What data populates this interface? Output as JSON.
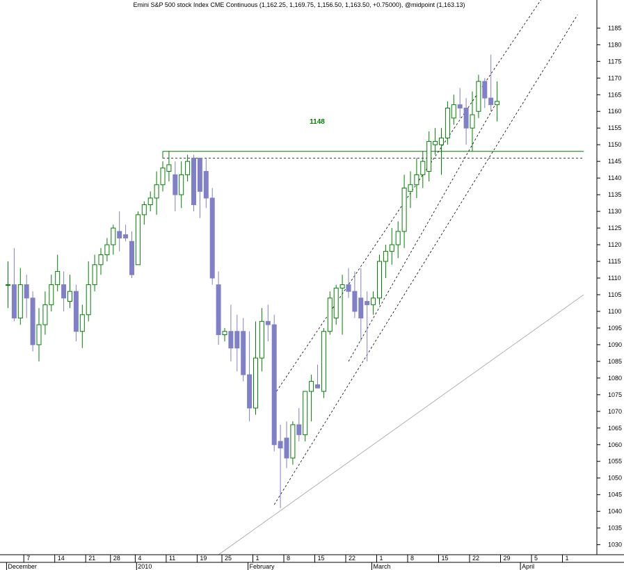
{
  "chart_data": {
    "type": "candlestick",
    "title": "Emini S&P 500 stock Index CME Continuous (1,162.25, 1,169.75, 1,156.50, 1,163.50, +0.75000), @midpoint (1,163.13)",
    "ylim": [
      1027,
      1193
    ],
    "ylabel": "",
    "xlabel": "",
    "grid": false,
    "y_ticks": [
      1030,
      1035,
      1040,
      1045,
      1050,
      1055,
      1060,
      1065,
      1070,
      1075,
      1080,
      1085,
      1090,
      1095,
      1100,
      1105,
      1110,
      1115,
      1120,
      1125,
      1130,
      1135,
      1140,
      1145,
      1150,
      1155,
      1160,
      1165,
      1170,
      1175,
      1180,
      1185
    ],
    "x_ticks": [
      {
        "label": "7",
        "bar": 3
      },
      {
        "label": "14",
        "bar": 8
      },
      {
        "label": "21",
        "bar": 13
      },
      {
        "label": "28",
        "bar": 17
      },
      {
        "label": "4",
        "bar": 21
      },
      {
        "label": "11",
        "bar": 26
      },
      {
        "label": "19",
        "bar": 31
      },
      {
        "label": "25",
        "bar": 35
      },
      {
        "label": "1",
        "bar": 40
      },
      {
        "label": "8",
        "bar": 45
      },
      {
        "label": "15",
        "bar": 50
      },
      {
        "label": "22",
        "bar": 55
      },
      {
        "label": "1",
        "bar": 60
      },
      {
        "label": "8",
        "bar": 65
      },
      {
        "label": "15",
        "bar": 70
      },
      {
        "label": "22",
        "bar": 75
      },
      {
        "label": "29",
        "bar": 80
      },
      {
        "label": "5",
        "bar": 85
      },
      {
        "label": "1",
        "bar": 90
      }
    ],
    "month_labels": [
      {
        "label": "December",
        "bar": 1
      },
      {
        "label": "2010",
        "bar": 22
      },
      {
        "label": "February",
        "bar": 40
      },
      {
        "label": "March",
        "bar": 60
      },
      {
        "label": "April",
        "bar": 84
      }
    ],
    "candles": [
      {
        "o": 1108,
        "h": 1115,
        "l": 1101,
        "c": 1108
      },
      {
        "o": 1108,
        "h": 1119,
        "l": 1097,
        "c": 1098
      },
      {
        "o": 1098,
        "h": 1113,
        "l": 1096,
        "c": 1108
      },
      {
        "o": 1108,
        "h": 1111,
        "l": 1098,
        "c": 1104
      },
      {
        "o": 1104,
        "h": 1106,
        "l": 1088,
        "c": 1090
      },
      {
        "o": 1090,
        "h": 1101,
        "l": 1085,
        "c": 1096
      },
      {
        "o": 1096,
        "h": 1106,
        "l": 1093,
        "c": 1102
      },
      {
        "o": 1102,
        "h": 1111,
        "l": 1100,
        "c": 1108
      },
      {
        "o": 1108,
        "h": 1117,
        "l": 1106,
        "c": 1112
      },
      {
        "o": 1108,
        "h": 1112,
        "l": 1100,
        "c": 1104
      },
      {
        "o": 1103,
        "h": 1111,
        "l": 1101,
        "c": 1106
      },
      {
        "o": 1106,
        "h": 1108,
        "l": 1091,
        "c": 1094
      },
      {
        "o": 1094,
        "h": 1102,
        "l": 1089,
        "c": 1099
      },
      {
        "o": 1099,
        "h": 1115,
        "l": 1097,
        "c": 1108
      },
      {
        "o": 1108,
        "h": 1117,
        "l": 1106,
        "c": 1114
      },
      {
        "o": 1114,
        "h": 1119,
        "l": 1111,
        "c": 1117
      },
      {
        "o": 1117,
        "h": 1122,
        "l": 1115,
        "c": 1120
      },
      {
        "o": 1120,
        "h": 1126,
        "l": 1117,
        "c": 1125
      },
      {
        "o": 1124,
        "h": 1130,
        "l": 1118,
        "c": 1122
      },
      {
        "o": 1123,
        "h": 1126,
        "l": 1121,
        "c": 1122
      },
      {
        "o": 1121,
        "h": 1124,
        "l": 1110,
        "c": 1111
      },
      {
        "o": 1114,
        "h": 1130,
        "l": 1114,
        "c": 1129
      },
      {
        "o": 1129,
        "h": 1133,
        "l": 1126,
        "c": 1132
      },
      {
        "o": 1132,
        "h": 1136,
        "l": 1130,
        "c": 1134
      },
      {
        "o": 1134,
        "h": 1142,
        "l": 1129,
        "c": 1138
      },
      {
        "o": 1138,
        "h": 1145,
        "l": 1136,
        "c": 1143
      },
      {
        "o": 1142,
        "h": 1148,
        "l": 1139,
        "c": 1144
      },
      {
        "o": 1141,
        "h": 1145,
        "l": 1130,
        "c": 1135
      },
      {
        "o": 1135,
        "h": 1145,
        "l": 1131,
        "c": 1141
      },
      {
        "o": 1141,
        "h": 1147,
        "l": 1139,
        "c": 1145
      },
      {
        "o": 1146,
        "h": 1147,
        "l": 1130,
        "c": 1132
      },
      {
        "o": 1146,
        "h": 1146,
        "l": 1128,
        "c": 1136
      },
      {
        "o": 1142,
        "h": 1146,
        "l": 1131,
        "c": 1134
      },
      {
        "o": 1134,
        "h": 1137,
        "l": 1108,
        "c": 1110
      },
      {
        "o": 1108,
        "h": 1112,
        "l": 1090,
        "c": 1093
      },
      {
        "o": 1093,
        "h": 1095,
        "l": 1091,
        "c": 1094
      },
      {
        "o": 1094,
        "h": 1102,
        "l": 1085,
        "c": 1089
      },
      {
        "o": 1094,
        "h": 1099,
        "l": 1082,
        "c": 1089
      },
      {
        "o": 1094,
        "h": 1098,
        "l": 1079,
        "c": 1081
      },
      {
        "o": 1081,
        "h": 1094,
        "l": 1067,
        "c": 1071
      },
      {
        "o": 1071,
        "h": 1097,
        "l": 1069,
        "c": 1086
      },
      {
        "o": 1086,
        "h": 1101,
        "l": 1082,
        "c": 1097
      },
      {
        "o": 1097,
        "h": 1102,
        "l": 1091,
        "c": 1096
      },
      {
        "o": 1096,
        "h": 1099,
        "l": 1058,
        "c": 1060
      },
      {
        "o": 1061,
        "h": 1066,
        "l": 1041,
        "c": 1059
      },
      {
        "o": 1062,
        "h": 1067,
        "l": 1053,
        "c": 1056
      },
      {
        "o": 1056,
        "h": 1067,
        "l": 1054,
        "c": 1066
      },
      {
        "o": 1066,
        "h": 1071,
        "l": 1061,
        "c": 1063
      },
      {
        "o": 1063,
        "h": 1076,
        "l": 1061,
        "c": 1076
      },
      {
        "o": 1076,
        "h": 1081,
        "l": 1067,
        "c": 1079
      },
      {
        "o": 1078,
        "h": 1084,
        "l": 1077,
        "c": 1077
      },
      {
        "o": 1076,
        "h": 1095,
        "l": 1074,
        "c": 1094
      },
      {
        "o": 1094,
        "h": 1106,
        "l": 1093,
        "c": 1104
      },
      {
        "o": 1098,
        "h": 1108,
        "l": 1096,
        "c": 1107
      },
      {
        "o": 1107,
        "h": 1111,
        "l": 1093,
        "c": 1108
      },
      {
        "o": 1108,
        "h": 1113,
        "l": 1104,
        "c": 1106
      },
      {
        "o": 1106,
        "h": 1112,
        "l": 1098,
        "c": 1100
      },
      {
        "o": 1104,
        "h": 1113,
        "l": 1091,
        "c": 1098
      },
      {
        "o": 1103,
        "h": 1106,
        "l": 1085,
        "c": 1102
      },
      {
        "o": 1102,
        "h": 1106,
        "l": 1099,
        "c": 1104
      },
      {
        "o": 1104,
        "h": 1117,
        "l": 1102,
        "c": 1115
      },
      {
        "o": 1115,
        "h": 1120,
        "l": 1110,
        "c": 1118
      },
      {
        "o": 1118,
        "h": 1125,
        "l": 1114,
        "c": 1120
      },
      {
        "o": 1120,
        "h": 1127,
        "l": 1116,
        "c": 1124
      },
      {
        "o": 1124,
        "h": 1141,
        "l": 1119,
        "c": 1137
      },
      {
        "o": 1136,
        "h": 1142,
        "l": 1131,
        "c": 1138
      },
      {
        "o": 1138,
        "h": 1146,
        "l": 1134,
        "c": 1141
      },
      {
        "o": 1141,
        "h": 1148,
        "l": 1137,
        "c": 1145
      },
      {
        "o": 1142,
        "h": 1154,
        "l": 1139,
        "c": 1151
      },
      {
        "o": 1150,
        "h": 1155,
        "l": 1147,
        "c": 1151
      },
      {
        "o": 1150,
        "h": 1155,
        "l": 1141,
        "c": 1152
      },
      {
        "o": 1152,
        "h": 1163,
        "l": 1150,
        "c": 1161
      },
      {
        "o": 1158,
        "h": 1165,
        "l": 1156,
        "c": 1162
      },
      {
        "o": 1162,
        "h": 1167,
        "l": 1158,
        "c": 1161
      },
      {
        "o": 1161,
        "h": 1164,
        "l": 1150,
        "c": 1155
      },
      {
        "o": 1155,
        "h": 1166,
        "l": 1148,
        "c": 1159
      },
      {
        "o": 1160,
        "h": 1171,
        "l": 1158,
        "c": 1169
      },
      {
        "o": 1169,
        "h": 1170,
        "l": 1161,
        "c": 1164
      },
      {
        "o": 1164,
        "h": 1177,
        "l": 1160,
        "c": 1162
      },
      {
        "o": 1162,
        "h": 1169,
        "l": 1157,
        "c": 1163
      }
    ],
    "bar_spacing_note": "",
    "annotations": [
      {
        "text": "1148",
        "kind": "horizontal-line",
        "value": 1148
      }
    ],
    "lines": [
      {
        "name": "",
        "kind": "solid",
        "from": {
          "bar": 25,
          "y": 1148
        },
        "to": {
          "bar": 93,
          "y": 1148
        }
      },
      {
        "name": "",
        "kind": "dashed",
        "from": {
          "bar": 25,
          "y": 1146
        },
        "to": {
          "bar": 93,
          "y": 1146
        }
      },
      {
        "name": "",
        "kind": "dashed",
        "from": {
          "bar": 43,
          "y": 1075
        },
        "to": {
          "bar": 87,
          "y": 1196
        }
      },
      {
        "name": "",
        "kind": "dashed",
        "from": {
          "bar": 43,
          "y": 1042
        },
        "to": {
          "bar": 92,
          "y": 1189
        }
      },
      {
        "name": "",
        "kind": "dashed",
        "from": {
          "bar": 55,
          "y": 1085
        },
        "to": {
          "bar": 79,
          "y": 1163
        }
      },
      {
        "name": "",
        "kind": "thin-gray",
        "from": {
          "bar": 34,
          "y": 1027
        },
        "to": {
          "bar": 93,
          "y": 1105
        }
      }
    ],
    "colors": {
      "up_body": "#ffffff",
      "up_outline": "#008000",
      "down_body": "#8080c8",
      "trend": "#000000",
      "support": "#008000",
      "diagonal": "#a0a0a0"
    }
  }
}
